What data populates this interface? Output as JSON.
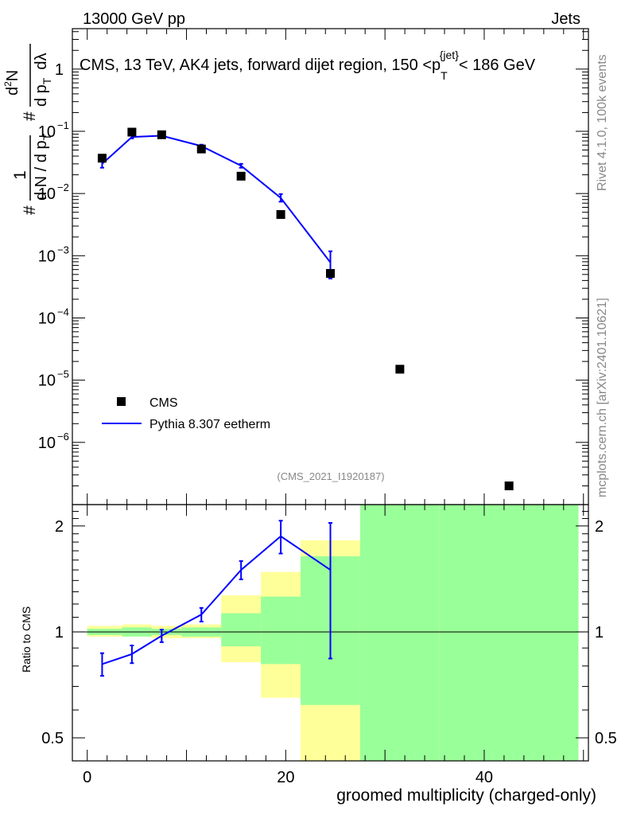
{
  "header": {
    "left": "13000 GeV pp",
    "right": "Jets"
  },
  "title": {
    "prefix": "CMS, 13 TeV, AK4 jets, forward dijet region, 150 <p",
    "sub": "T",
    "sup": "{jet}",
    "suffix": "< 186 GeV"
  },
  "ylabel_top": {
    "num": "1",
    "hash": "#",
    "mid": "d N / d p",
    "sub": "T",
    "frac2_num_d": "d",
    "frac2_num_N": "N",
    "frac2_num_sup": "2",
    "frac2_den": "d p",
    "frac2_den_sub": "T",
    "frac2_den_tail": "d",
    "lambda": "λ",
    "hash2": "#"
  },
  "side_text": {
    "rivet": "Rivet 4.1.0,  100k events",
    "mcplots": "mcplots.cern.ch [arXiv:2401.10621]"
  },
  "watermark": "(CMS_2021_I1920187)",
  "legend": {
    "data_label": "CMS",
    "mc_label": "Pythia 8.307 eetherm"
  },
  "ratio_ylabel": "Ratio to CMS",
  "xlabel": "groomed multiplicity (charged-only)",
  "colors": {
    "mc": "#0000ff",
    "band_inner": "#99ff99",
    "band_outer": "#ffff99",
    "data": "#000000"
  },
  "chart_data": {
    "type": "scatter",
    "x_ticks": [
      "0",
      "20",
      "40"
    ],
    "x_tick_values": [
      0,
      20,
      40
    ],
    "xlim": [
      -1.5,
      50.5
    ],
    "ylim_top_log10": [
      -7,
      0.65
    ],
    "y_tick_top": [
      {
        "exp": 0,
        "label": "1",
        "sup": ""
      },
      {
        "exp": -1,
        "label": "10",
        "sup": "−1"
      },
      {
        "exp": -2,
        "label": "10",
        "sup": "−2"
      },
      {
        "exp": -3,
        "label": "10",
        "sup": "−3"
      },
      {
        "exp": -4,
        "label": "10",
        "sup": "−4"
      },
      {
        "exp": -5,
        "label": "10",
        "sup": "−5"
      },
      {
        "exp": -6,
        "label": "10",
        "sup": "−6"
      }
    ],
    "ratio_ylim_log": [
      0.43,
      2.3
    ],
    "ratio_ticks": [
      {
        "value": 0.5,
        "label": "0.5"
      },
      {
        "value": 1,
        "label": "1"
      },
      {
        "value": 2,
        "label": "2"
      }
    ],
    "bins": [
      [
        0,
        3.5
      ],
      [
        3.5,
        6.5
      ],
      [
        6.5,
        9.5
      ],
      [
        9.5,
        13.5
      ],
      [
        13.5,
        17.5
      ],
      [
        17.5,
        21.5
      ],
      [
        21.5,
        27.5
      ],
      [
        27.5,
        35.5
      ],
      [
        35.5,
        49.5
      ]
    ],
    "data_series": {
      "name": "CMS",
      "x": [
        1.5,
        4.5,
        7.5,
        11.5,
        15.5,
        19.5,
        24.5,
        31.5,
        42.5
      ],
      "y": [
        0.037,
        0.097,
        0.088,
        0.052,
        0.019,
        0.0046,
        0.00052,
        1.5e-05,
        2e-07
      ]
    },
    "mc_series": {
      "name": "Pythia 8.307 eetherm",
      "x": [
        1.5,
        4.5,
        7.5,
        11.5,
        15.5,
        19.5,
        24.5
      ],
      "y": [
        0.03,
        0.081,
        0.085,
        0.058,
        0.028,
        0.0085,
        0.00078
      ],
      "yerr_low": [
        0.004,
        0.004,
        0.003,
        0.003,
        0.002,
        0.0011,
        0.00035
      ],
      "yerr_high": [
        0.004,
        0.004,
        0.003,
        0.003,
        0.002,
        0.0013,
        0.0004
      ]
    },
    "ratio": {
      "x": [
        1.5,
        4.5,
        7.5,
        11.5,
        15.5,
        19.5,
        24.5
      ],
      "y": [
        0.81,
        0.865,
        0.975,
        1.12,
        1.5,
        1.87,
        1.5
      ],
      "err_low": [
        0.06,
        0.05,
        0.04,
        0.05,
        0.09,
        0.2,
        0.66
      ],
      "err_high": [
        0.06,
        0.05,
        0.04,
        0.05,
        0.09,
        0.2,
        0.54
      ],
      "band_inner": [
        [
          0.98,
          1.02
        ],
        [
          0.97,
          1.03
        ],
        [
          0.98,
          1.02
        ],
        [
          0.97,
          1.03
        ],
        [
          0.91,
          1.13
        ],
        [
          0.81,
          1.26
        ],
        [
          0.62,
          1.64
        ],
        [
          0.4,
          2.4
        ],
        [
          0.4,
          2.4
        ]
      ],
      "band_outer": [
        [
          0.97,
          1.04
        ],
        [
          0.97,
          1.05
        ],
        [
          0.96,
          1.04
        ],
        [
          0.96,
          1.05
        ],
        [
          0.82,
          1.27
        ],
        [
          0.65,
          1.48
        ],
        [
          0.4,
          1.82
        ],
        [
          0.4,
          2.4
        ],
        [
          0.4,
          2.4
        ]
      ]
    }
  }
}
